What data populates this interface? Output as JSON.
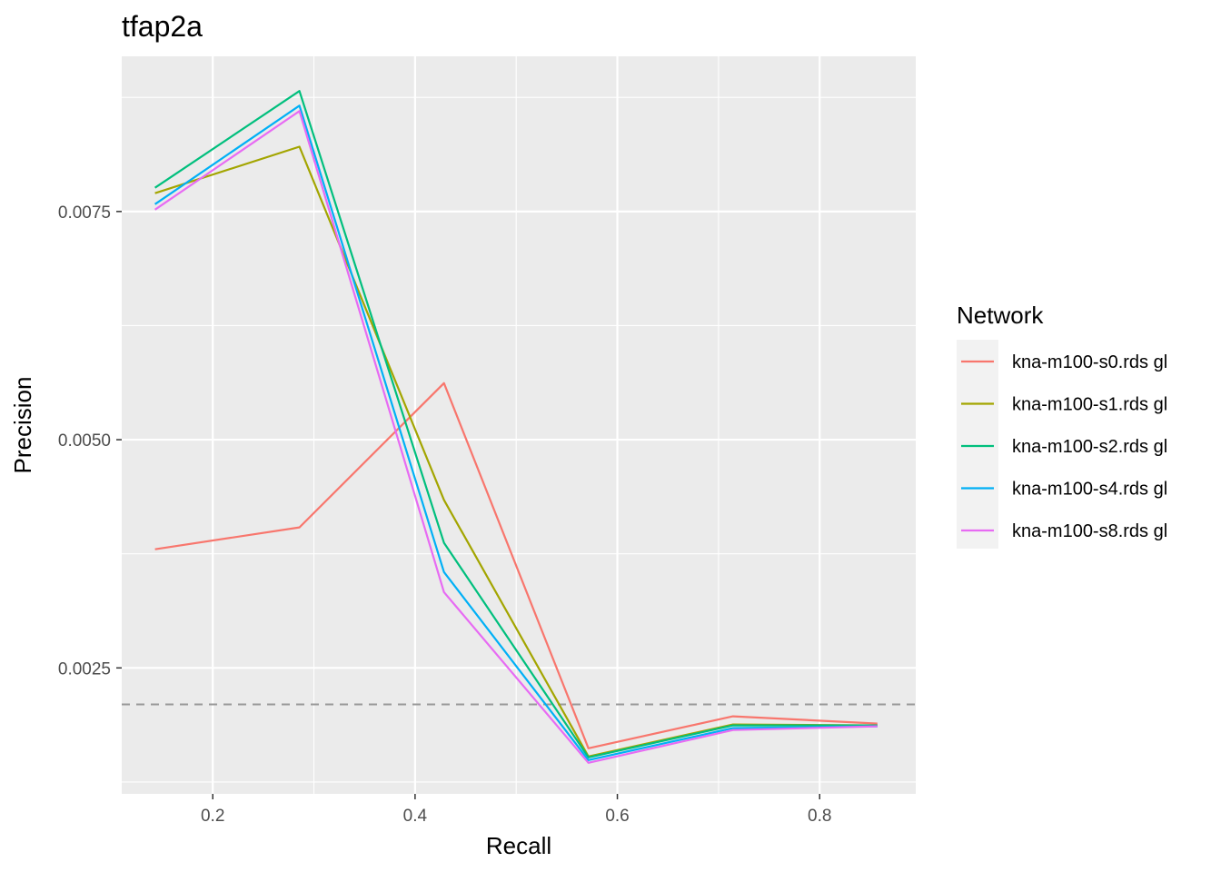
{
  "chart_data": {
    "type": "line",
    "title": "tfap2a",
    "xlabel": "Recall",
    "ylabel": "Precision",
    "xlim": [
      0.11,
      0.895
    ],
    "ylim": [
      0.00112,
      0.0092
    ],
    "x_ticks": [
      0.2,
      0.4,
      0.6,
      0.8
    ],
    "x_tick_labels": [
      "0.2",
      "0.4",
      "0.6",
      "0.8"
    ],
    "y_ticks": [
      0.0025,
      0.005,
      0.0075
    ],
    "y_tick_labels": [
      "0.0025",
      "0.0050",
      "0.0075"
    ],
    "grid": true,
    "legend_position": "right",
    "legend_title": "Network",
    "x": [
      0.1429,
      0.2857,
      0.4286,
      0.5714,
      0.7143,
      0.8571
    ],
    "series": [
      {
        "name": "kna-m100-s0.rds gl",
        "color": "#F8766D",
        "values": [
          0.0038,
          0.00404,
          0.00562,
          0.00162,
          0.00197,
          0.00189
        ]
      },
      {
        "name": "kna-m100-s1.rds gl",
        "color": "#A3A500",
        "values": [
          0.0077,
          0.00821,
          0.00434,
          0.00153,
          0.00188,
          0.00187
        ]
      },
      {
        "name": "kna-m100-s2.rds gl",
        "color": "#00BF7D",
        "values": [
          0.00776,
          0.00882,
          0.00387,
          0.00152,
          0.00187,
          0.00187
        ]
      },
      {
        "name": "kna-m100-s4.rds gl",
        "color": "#00B0F6",
        "values": [
          0.00758,
          0.00866,
          0.00355,
          0.00149,
          0.00184,
          0.00186
        ]
      },
      {
        "name": "kna-m100-s8.rds gl",
        "color": "#E76BF3",
        "values": [
          0.00752,
          0.0086,
          0.00333,
          0.00146,
          0.00182,
          0.00186
        ]
      }
    ],
    "reference_line": {
      "y": 0.0021,
      "style": "dashed",
      "color": "#999999"
    }
  }
}
